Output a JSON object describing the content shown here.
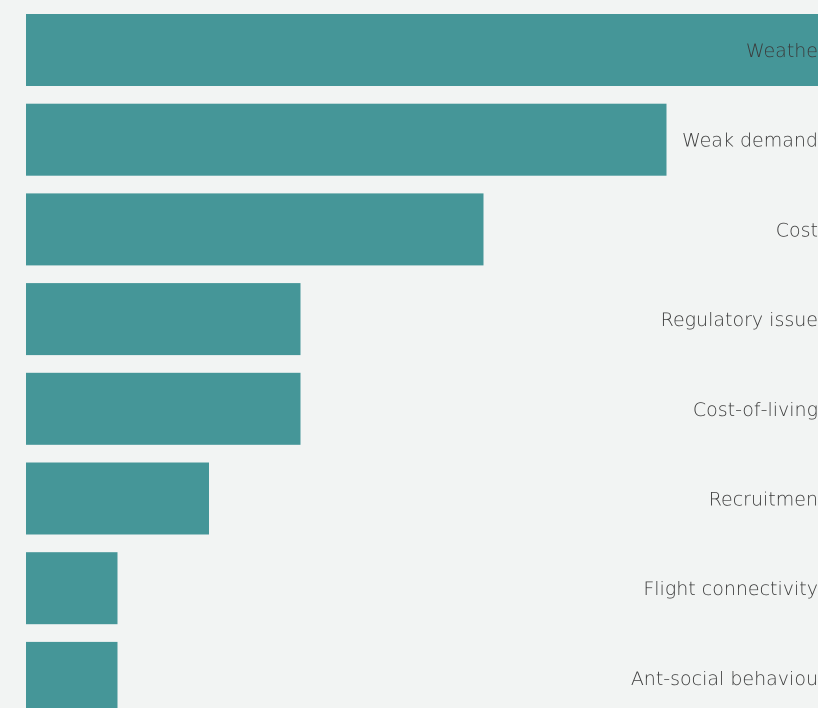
{
  "chart_data": {
    "type": "bar",
    "orientation": "horizontal",
    "categories": [
      "Weathe",
      "Weak demand",
      "Cost",
      "Regulatory issue",
      "Cost-of-living",
      "Recruitmen",
      "Flight connectivity",
      "Ant-social behaviou"
    ],
    "values": [
      26,
      21,
      15,
      9,
      9,
      6,
      3,
      3
    ],
    "xlim": [
      0,
      26
    ],
    "grid": false,
    "bar_color": "#459698",
    "background_color": "#f2f4f3"
  }
}
